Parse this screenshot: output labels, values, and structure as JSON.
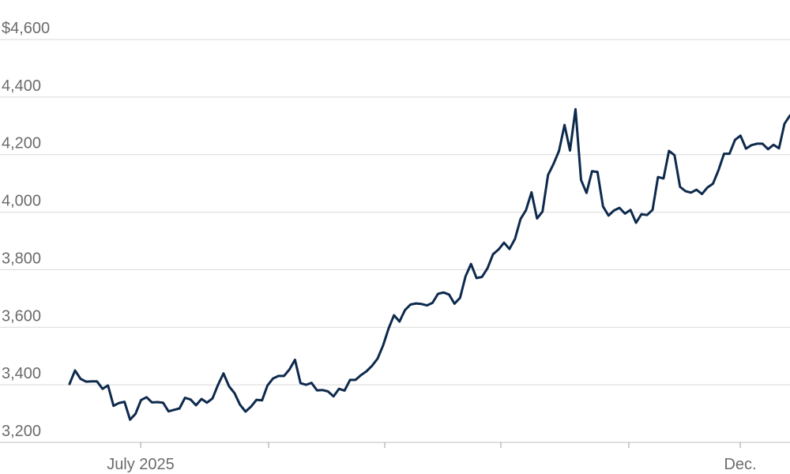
{
  "chart_data": {
    "type": "line",
    "title": "",
    "xlabel": "",
    "ylabel": "",
    "y_unit_prefix": "$",
    "ylim": [
      3200,
      4600
    ],
    "y_ticks": [
      {
        "value": 3200,
        "label": "3,200"
      },
      {
        "value": 3400,
        "label": "3,400"
      },
      {
        "value": 3600,
        "label": "3,600"
      },
      {
        "value": 3800,
        "label": "3,800"
      },
      {
        "value": 4000,
        "label": "4,000"
      },
      {
        "value": 4200,
        "label": "4,200"
      },
      {
        "value": 4400,
        "label": "4,400"
      },
      {
        "value": 4600,
        "label": "$4,600"
      }
    ],
    "x_ticks": [
      {
        "label": "July 2025"
      },
      {
        "label": ""
      },
      {
        "label": ""
      },
      {
        "label": ""
      },
      {
        "label": ""
      },
      {
        "label": "Dec."
      }
    ],
    "grid": true,
    "line_color": "#0d2a4d",
    "grid_color": "#d9d9d9",
    "series": [
      {
        "values": [
          3403,
          3450,
          3421,
          3411,
          3412,
          3412,
          3386,
          3398,
          3327,
          3337,
          3341,
          3279,
          3299,
          3347,
          3357,
          3339,
          3340,
          3338,
          3308,
          3313,
          3318,
          3355,
          3349,
          3329,
          3351,
          3338,
          3353,
          3400,
          3440,
          3395,
          3371,
          3331,
          3307,
          3324,
          3348,
          3346,
          3398,
          3422,
          3431,
          3431,
          3454,
          3487,
          3406,
          3400,
          3407,
          3381,
          3382,
          3377,
          3360,
          3386,
          3380,
          3417,
          3417,
          3434,
          3447,
          3466,
          3491,
          3536,
          3595,
          3642,
          3620,
          3660,
          3679,
          3683,
          3681,
          3676,
          3685,
          3716,
          3721,
          3714,
          3682,
          3702,
          3777,
          3820,
          3771,
          3775,
          3805,
          3854,
          3870,
          3894,
          3872,
          3907,
          3976,
          4007,
          4069,
          3978,
          4002,
          4129,
          4167,
          4213,
          4303,
          4214,
          4358,
          4112,
          4067,
          4142,
          4140,
          4020,
          3988,
          4006,
          4015,
          3995,
          4008,
          3963,
          3993,
          3990,
          4008,
          4122,
          4117,
          4213,
          4198,
          4088,
          4073,
          4068,
          4078,
          4063,
          4086,
          4099,
          4146,
          4203,
          4203,
          4251,
          4266,
          4221,
          4233,
          4238,
          4238,
          4219,
          4234,
          4222,
          4307,
          4336
        ]
      }
    ]
  }
}
